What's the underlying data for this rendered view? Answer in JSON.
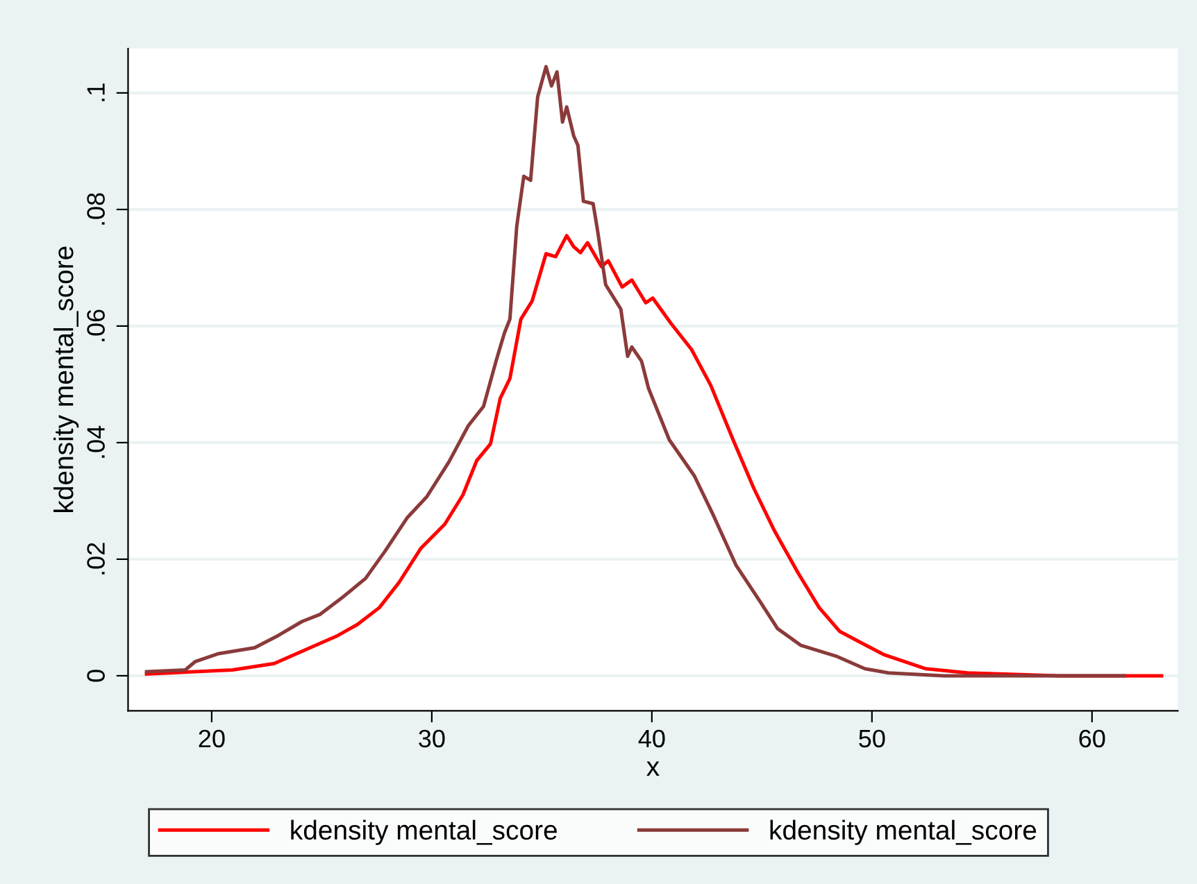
{
  "chart_data": {
    "type": "line",
    "xlabel": "x",
    "ylabel": "kdensity mental_score",
    "xlim": [
      16.2,
      63.9
    ],
    "ylim": [
      -0.006,
      0.1076
    ],
    "xticks": [
      20,
      30,
      40,
      50,
      60
    ],
    "yticks": [
      {
        "value": 0,
        "label": "0"
      },
      {
        "value": 0.02,
        "label": ".02"
      },
      {
        "value": 0.04,
        "label": ".04"
      },
      {
        "value": 0.06,
        "label": ".06"
      },
      {
        "value": 0.08,
        "label": ".08"
      },
      {
        "value": 0.1,
        "label": ".1"
      }
    ],
    "grid": "y",
    "legend": "bottom",
    "marker": "none",
    "line_style": "solid",
    "series": [
      {
        "name": "kdensity mental_score",
        "color": "#ff0000",
        "x": [
          17.04,
          20.95,
          22.84,
          24.47,
          25.73,
          26.62,
          27.62,
          28.51,
          29.51,
          30.59,
          31.41,
          32.04,
          32.67,
          33.11,
          33.55,
          34.05,
          34.56,
          35.19,
          35.63,
          36.13,
          36.45,
          36.76,
          37.08,
          37.71,
          38.02,
          38.65,
          39.09,
          39.72,
          40.04,
          40.86,
          41.8,
          42.68,
          43.69,
          44.64,
          45.58,
          46.65,
          47.6,
          48.54,
          49.49,
          50.56,
          52.45,
          54.34,
          58.5,
          63.16
        ],
        "values": [
          0.0003,
          0.001,
          0.0021,
          0.0048,
          0.0069,
          0.0088,
          0.0117,
          0.016,
          0.0219,
          0.026,
          0.031,
          0.0369,
          0.0398,
          0.0476,
          0.051,
          0.0612,
          0.0643,
          0.0724,
          0.0719,
          0.0755,
          0.0736,
          0.0726,
          0.0743,
          0.0702,
          0.0712,
          0.0667,
          0.0679,
          0.064,
          0.0648,
          0.0605,
          0.056,
          0.0498,
          0.0405,
          0.0321,
          0.0248,
          0.0176,
          0.0117,
          0.0076,
          0.0057,
          0.0036,
          0.0012,
          0.0005,
          0.0,
          0.0
        ]
      },
      {
        "name": "kdensity mental_score",
        "color": "#8b3a3a",
        "x": [
          17.04,
          18.8,
          19.24,
          20.32,
          21.95,
          23.02,
          24.1,
          24.91,
          25.99,
          26.99,
          27.88,
          28.88,
          29.77,
          30.78,
          31.66,
          32.35,
          32.92,
          33.3,
          33.55,
          33.86,
          34.18,
          34.49,
          34.81,
          35.19,
          35.44,
          35.69,
          35.94,
          36.13,
          36.45,
          36.64,
          36.89,
          37.33,
          37.52,
          37.9,
          38.59,
          38.9,
          39.09,
          39.53,
          39.85,
          40.79,
          41.93,
          42.75,
          43.82,
          44.89,
          45.71,
          46.78,
          48.42,
          49.68,
          50.75,
          53.27,
          60.0,
          61.46
        ],
        "values": [
          0.0007,
          0.001,
          0.0024,
          0.0038,
          0.0048,
          0.0069,
          0.0093,
          0.0105,
          0.0136,
          0.0167,
          0.0214,
          0.0271,
          0.0307,
          0.0367,
          0.0429,
          0.0462,
          0.054,
          0.0588,
          0.0612,
          0.0771,
          0.0857,
          0.085,
          0.0993,
          0.1045,
          0.1012,
          0.1036,
          0.095,
          0.0976,
          0.0926,
          0.091,
          0.0814,
          0.081,
          0.0767,
          0.0671,
          0.0629,
          0.0548,
          0.0564,
          0.054,
          0.0493,
          0.0405,
          0.0343,
          0.0279,
          0.019,
          0.0129,
          0.0081,
          0.0052,
          0.0033,
          0.0012,
          0.0005,
          0.0,
          0.0,
          0.0
        ]
      }
    ]
  }
}
